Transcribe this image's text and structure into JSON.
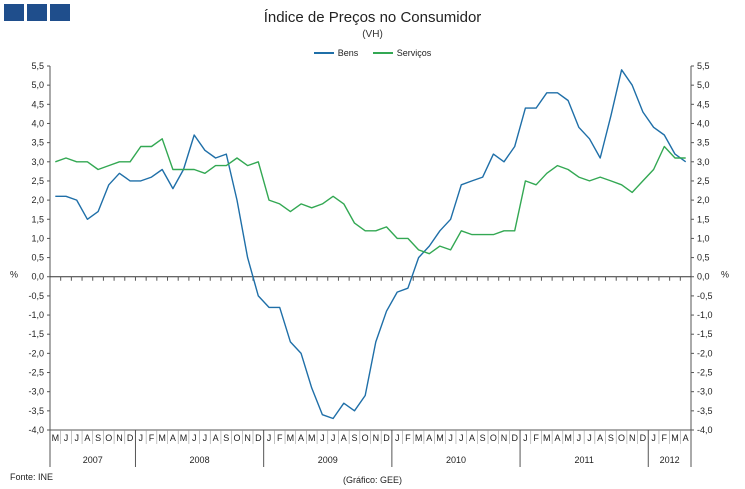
{
  "header": {
    "title": "Índice de Preços no Consumidor",
    "subtitle": "(VH)"
  },
  "footer": {
    "source": "Fonte: INE",
    "credit": "(Gráfico: GEE)"
  },
  "colors": {
    "logo": "#1f4e8c",
    "bens": "#1f6fa8",
    "servicos": "#33a853",
    "axis": "#555555"
  },
  "chart_data": {
    "type": "line",
    "title": "Índice de Preços no Consumidor",
    "subtitle": "(VH)",
    "ylabel_left": "%",
    "ylabel_right": "%",
    "ylim": [
      -4.0,
      5.5
    ],
    "y_ticks": [
      "5,5",
      "5,0",
      "4,5",
      "4,0",
      "3,5",
      "3,0",
      "2,5",
      "2,0",
      "1,5",
      "1,0",
      "0,5",
      "0,0",
      "-0,5",
      "-1,0",
      "-1,5",
      "-2,0",
      "-2,5",
      "-3,0",
      "-3,5",
      "-4,0"
    ],
    "y_tick_values": [
      5.5,
      5.0,
      4.5,
      4.0,
      3.5,
      3.0,
      2.5,
      2.0,
      1.5,
      1.0,
      0.5,
      0.0,
      -0.5,
      -1.0,
      -1.5,
      -2.0,
      -2.5,
      -3.0,
      -3.5,
      -4.0
    ],
    "legend_position": "top-center",
    "categories": [
      "M",
      "J",
      "J",
      "A",
      "S",
      "O",
      "N",
      "D",
      "J",
      "F",
      "M",
      "A",
      "M",
      "J",
      "J",
      "A",
      "S",
      "O",
      "N",
      "D",
      "J",
      "F",
      "M",
      "A",
      "M",
      "J",
      "J",
      "A",
      "S",
      "O",
      "N",
      "D",
      "J",
      "F",
      "M",
      "A",
      "M",
      "J",
      "J",
      "A",
      "S",
      "O",
      "N",
      "D",
      "J",
      "F",
      "M",
      "A",
      "M",
      "J",
      "J",
      "A",
      "S",
      "O",
      "N",
      "D",
      "J",
      "F",
      "M",
      "A"
    ],
    "years": [
      {
        "label": "2007",
        "start": 0,
        "count": 8
      },
      {
        "label": "2008",
        "start": 8,
        "count": 12
      },
      {
        "label": "2009",
        "start": 20,
        "count": 12
      },
      {
        "label": "2010",
        "start": 32,
        "count": 12
      },
      {
        "label": "2011",
        "start": 44,
        "count": 12
      },
      {
        "label": "2012",
        "start": 56,
        "count": 4
      }
    ],
    "series": [
      {
        "name": "Bens",
        "values": [
          2.1,
          2.1,
          2.0,
          1.5,
          1.7,
          2.4,
          2.7,
          2.5,
          2.5,
          2.6,
          2.8,
          2.3,
          2.8,
          3.7,
          3.3,
          3.1,
          3.2,
          2.0,
          0.5,
          -0.5,
          -0.8,
          -0.8,
          -1.7,
          -2.0,
          -2.9,
          -3.6,
          -3.7,
          -3.3,
          -3.5,
          -3.1,
          -1.7,
          -0.9,
          -0.4,
          -0.3,
          0.5,
          0.8,
          1.2,
          1.5,
          2.4,
          2.5,
          2.6,
          3.2,
          3.0,
          3.4,
          4.4,
          4.4,
          4.8,
          4.8,
          4.6,
          3.9,
          3.6,
          3.1,
          4.2,
          5.4,
          5.0,
          4.3,
          3.9,
          3.7,
          3.2,
          3.0
        ]
      },
      {
        "name": "Serviços",
        "values": [
          3.0,
          3.1,
          3.0,
          3.0,
          2.8,
          2.9,
          3.0,
          3.0,
          3.4,
          3.4,
          3.6,
          2.8,
          2.8,
          2.8,
          2.7,
          2.9,
          2.9,
          3.1,
          2.9,
          3.0,
          2.0,
          1.9,
          1.7,
          1.9,
          1.8,
          1.9,
          2.1,
          1.9,
          1.4,
          1.2,
          1.2,
          1.3,
          1.0,
          1.0,
          0.7,
          0.6,
          0.8,
          0.7,
          1.2,
          1.1,
          1.1,
          1.1,
          1.2,
          1.2,
          2.5,
          2.4,
          2.7,
          2.9,
          2.8,
          2.6,
          2.5,
          2.6,
          2.5,
          2.4,
          2.2,
          2.5,
          2.8,
          3.4,
          3.1,
          3.1
        ]
      }
    ]
  }
}
